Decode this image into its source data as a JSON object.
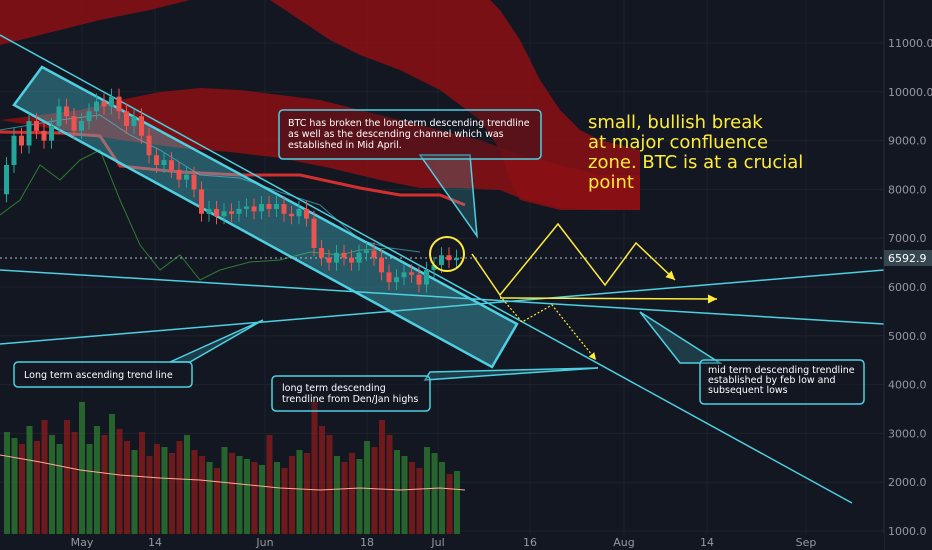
{
  "chart_data": {
    "type": "candlestick",
    "instrument": "BTC",
    "y_axis_ticks": [
      "11000.0",
      "10000.0",
      "9000.0",
      "8000.0",
      "7000.0",
      "6000.0",
      "5000.0",
      "4000.0",
      "3000.0",
      "2000.0",
      "1000.0"
    ],
    "x_axis_ticks": [
      "May",
      "14",
      "Jun",
      "18",
      "Jul",
      "16",
      "Aug",
      "14",
      "Sep"
    ],
    "last_price": "6592.9",
    "candles": [
      {
        "o": 7900,
        "c": 8500
      },
      {
        "o": 8500,
        "c": 9100
      },
      {
        "o": 9100,
        "c": 8900
      },
      {
        "o": 8900,
        "c": 9400
      },
      {
        "o": 9400,
        "c": 9200
      },
      {
        "o": 9200,
        "c": 9000
      },
      {
        "o": 9000,
        "c": 9300
      },
      {
        "o": 9300,
        "c": 9700
      },
      {
        "o": 9700,
        "c": 9500
      },
      {
        "o": 9500,
        "c": 9200
      },
      {
        "o": 9200,
        "c": 9400
      },
      {
        "o": 9400,
        "c": 9600
      },
      {
        "o": 9600,
        "c": 9800
      },
      {
        "o": 9800,
        "c": 9700
      },
      {
        "o": 9700,
        "c": 9900
      },
      {
        "o": 9900,
        "c": 9600
      },
      {
        "o": 9600,
        "c": 9300
      },
      {
        "o": 9300,
        "c": 9500
      },
      {
        "o": 9500,
        "c": 9100
      },
      {
        "o": 9100,
        "c": 8700
      },
      {
        "o": 8700,
        "c": 8500
      },
      {
        "o": 8500,
        "c": 8600
      },
      {
        "o": 8600,
        "c": 8400
      },
      {
        "o": 8400,
        "c": 8200
      },
      {
        "o": 8200,
        "c": 8300
      },
      {
        "o": 8300,
        "c": 8000
      },
      {
        "o": 8000,
        "c": 7500
      },
      {
        "o": 7500,
        "c": 7600
      },
      {
        "o": 7600,
        "c": 7450
      },
      {
        "o": 7450,
        "c": 7550
      },
      {
        "o": 7550,
        "c": 7500
      },
      {
        "o": 7500,
        "c": 7600
      },
      {
        "o": 7600,
        "c": 7650
      },
      {
        "o": 7650,
        "c": 7550
      },
      {
        "o": 7550,
        "c": 7700
      },
      {
        "o": 7700,
        "c": 7600
      },
      {
        "o": 7600,
        "c": 7700
      },
      {
        "o": 7700,
        "c": 7500
      },
      {
        "o": 7500,
        "c": 7450
      },
      {
        "o": 7450,
        "c": 7600
      },
      {
        "o": 7600,
        "c": 7400
      },
      {
        "o": 7400,
        "c": 6800
      },
      {
        "o": 6800,
        "c": 6600
      },
      {
        "o": 6600,
        "c": 6500
      },
      {
        "o": 6500,
        "c": 6700
      },
      {
        "o": 6700,
        "c": 6600
      },
      {
        "o": 6600,
        "c": 6500
      },
      {
        "o": 6500,
        "c": 6700
      },
      {
        "o": 6700,
        "c": 6750
      },
      {
        "o": 6750,
        "c": 6600
      },
      {
        "o": 6600,
        "c": 6300
      },
      {
        "o": 6300,
        "c": 6100
      },
      {
        "o": 6100,
        "c": 6200
      },
      {
        "o": 6200,
        "c": 6300
      },
      {
        "o": 6300,
        "c": 6250
      },
      {
        "o": 6250,
        "c": 6050
      },
      {
        "o": 6050,
        "c": 6350
      },
      {
        "o": 6350,
        "c": 6450
      },
      {
        "o": 6450,
        "c": 6650
      },
      {
        "o": 6650,
        "c": 6550
      },
      {
        "o": 6550,
        "c": 6600
      }
    ],
    "volumes": [
      34,
      32,
      30,
      36,
      31,
      38,
      33,
      30,
      38,
      34,
      44,
      30,
      36,
      33,
      40,
      35,
      31,
      28,
      34,
      26,
      30,
      29,
      27,
      31,
      33,
      28,
      26,
      24,
      22,
      29,
      27,
      26,
      25,
      24,
      23,
      33,
      24,
      22,
      26,
      28,
      27,
      44,
      36,
      33,
      26,
      24,
      27,
      25,
      31,
      29,
      38,
      33,
      28,
      26,
      24,
      22,
      29,
      27,
      24,
      20,
      21
    ]
  },
  "annotations": {
    "top_box": "BTC has broken the longterm descending trendline as well as the descending channel which was established in Mid April.",
    "big_text": [
      "small, bullish break",
      "at major confluence",
      "zone.  BTC is at a crucial",
      "point"
    ],
    "asc_box": "Long term ascending trend line",
    "desc_box": "long term descending trendline from Den/Jan highs",
    "mid_box": "mid term descending trendline established by feb low and subsequent lows"
  },
  "colors": {
    "background": "#131722",
    "cloud": "#8b0f14",
    "bull_candle": "#26a69a",
    "bear_candle": "#ef5350",
    "trendline": "#4dd0e1",
    "projection": "#ffeb3b",
    "kijun": "#d32f2f",
    "price_label_bg": "#37474f"
  }
}
